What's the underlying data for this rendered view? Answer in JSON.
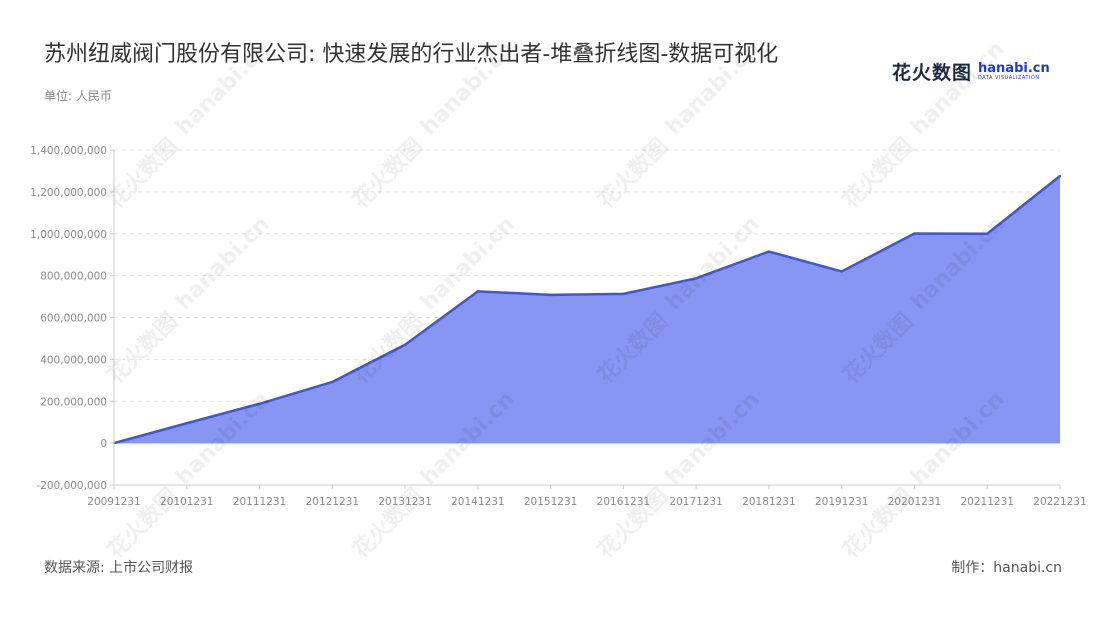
{
  "title": "苏州纽威阀门股份有限公司: 快速发展的行业杰出者-堆叠折线图-数据可视化",
  "unit_label": "单位: 人民币",
  "source": "数据来源: 上市公司财报",
  "made_by": "制作：hanabi.cn",
  "logo": {
    "cn": "花火数图",
    "en": "hanabi.cn",
    "sub": "DATA VISUALIZATION"
  },
  "colors": {
    "line": "#3d55e0",
    "fill": "#8796f3",
    "grid": "#e3e3e3",
    "axis": "#cccccc"
  },
  "chart_data": {
    "type": "area",
    "x": [
      "20091231",
      "20101231",
      "20111231",
      "20121231",
      "20131231",
      "20141231",
      "20151231",
      "20161231",
      "20171231",
      "20181231",
      "20191231",
      "20201231",
      "20211231",
      "20221231"
    ],
    "series": [
      {
        "values": [
          0,
          95000000,
          188000000,
          292000000,
          470000000,
          725000000,
          708000000,
          713000000,
          787000000,
          915000000,
          820000000,
          1001000000,
          1000000000,
          1276000000
        ]
      }
    ],
    "y_ticks": [
      "1,400,000,000",
      "1,200,000,000",
      "1,000,000,000",
      "800,000,000",
      "600,000,000",
      "400,000,000",
      "200,000,000",
      "0",
      "-200,000,000"
    ],
    "ylim": [
      -200000000,
      1400000000
    ],
    "grid": true
  }
}
